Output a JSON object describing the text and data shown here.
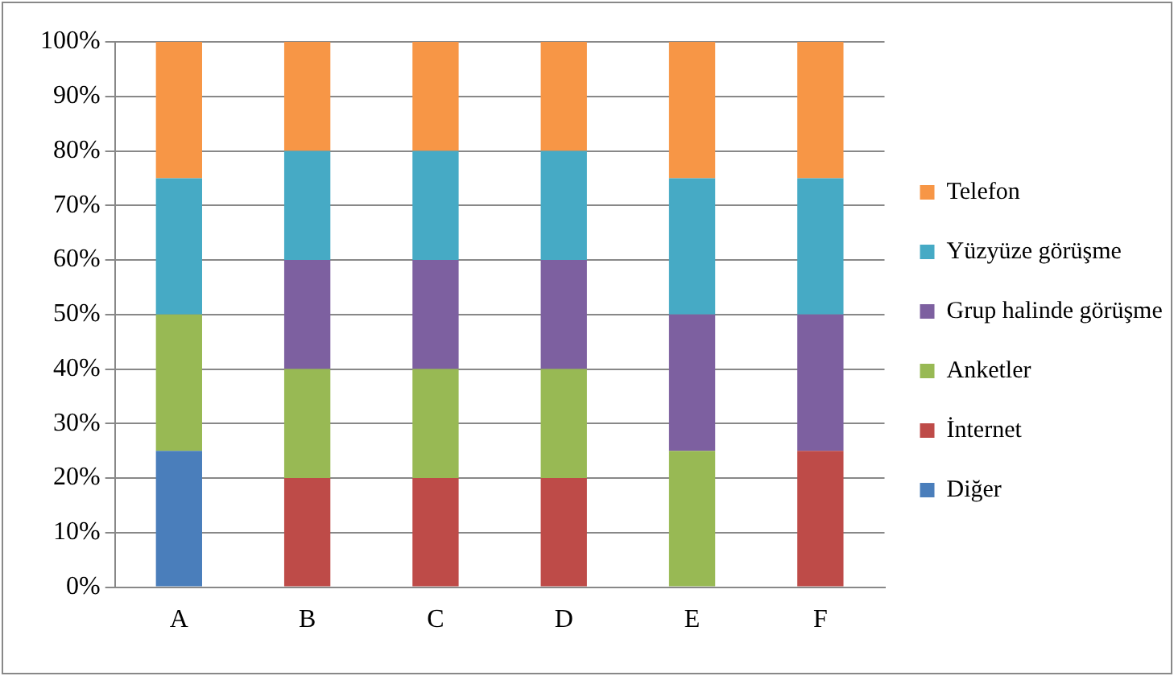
{
  "chart_data": {
    "type": "bar",
    "stacked": true,
    "categories": [
      "A",
      "B",
      "C",
      "D",
      "E",
      "F"
    ],
    "series": [
      {
        "name": "Diğer",
        "color": "#4a7ebb",
        "values": [
          25,
          0,
          0,
          0,
          0,
          0
        ]
      },
      {
        "name": "İnternet",
        "color": "#be4b48",
        "values": [
          0,
          20,
          20,
          20,
          0,
          25
        ]
      },
      {
        "name": "Anketler",
        "color": "#98b954",
        "values": [
          25,
          20,
          20,
          20,
          25,
          0
        ]
      },
      {
        "name": "Grup halinde görüşme",
        "color": "#7d60a0",
        "values": [
          0,
          20,
          20,
          20,
          25,
          25
        ]
      },
      {
        "name": "Yüzyüze görüşme",
        "color": "#46aac5",
        "values": [
          25,
          20,
          20,
          20,
          25,
          25
        ]
      },
      {
        "name": "Telefon",
        "color": "#f79646",
        "values": [
          25,
          20,
          20,
          20,
          25,
          25
        ]
      }
    ],
    "ylim": [
      0,
      100
    ],
    "yticks": [
      {
        "value": 0,
        "label": "0%"
      },
      {
        "value": 10,
        "label": "10%"
      },
      {
        "value": 20,
        "label": "20%"
      },
      {
        "value": 30,
        "label": "30%"
      },
      {
        "value": 40,
        "label": "40%"
      },
      {
        "value": 50,
        "label": "50%"
      },
      {
        "value": 60,
        "label": "60%"
      },
      {
        "value": 70,
        "label": "70%"
      },
      {
        "value": 80,
        "label": "80%"
      },
      {
        "value": 90,
        "label": "90%"
      },
      {
        "value": 100,
        "label": "100%"
      }
    ],
    "grid": "y",
    "legend": "right"
  }
}
